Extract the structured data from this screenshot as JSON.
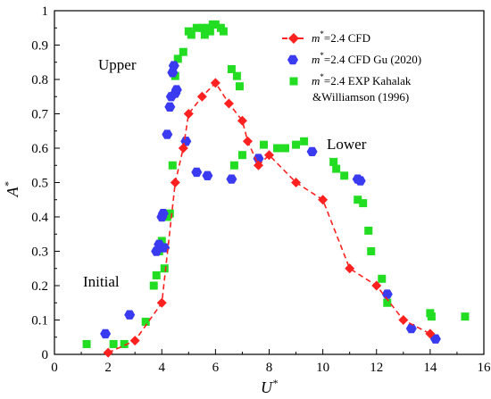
{
  "chart_data": {
    "type": "scatter",
    "xlabel": "U",
    "xlabel_sup": "*",
    "ylabel": "A",
    "ylabel_sup": "*",
    "xlim": [
      0,
      16
    ],
    "ylim": [
      0,
      1
    ],
    "xticks": [
      0,
      2,
      4,
      6,
      8,
      10,
      12,
      14,
      16
    ],
    "yticks": [
      0,
      0.1,
      0.2,
      0.3,
      0.4,
      0.5,
      0.6,
      0.7,
      0.8,
      0.9,
      1
    ],
    "ytick_labels": [
      "0",
      "0.1",
      "0.2",
      "0.3",
      "0.4",
      "0.5",
      "0.6",
      "0.7",
      "0.8",
      "0.9",
      "1"
    ],
    "grid": false,
    "legend_position": "top-right",
    "annotations": [
      {
        "text": "Upper",
        "x": 2.6,
        "y": 0.86
      },
      {
        "text": "Lower",
        "x": 10.6,
        "y": 0.6
      },
      {
        "text": "Initial",
        "x": 1.8,
        "y": 0.2
      }
    ],
    "series": [
      {
        "name_prefix": "m",
        "name_sup": "*",
        "name_rest": "=2.4 CFD",
        "marker": "diamond",
        "line": "dashed",
        "color": "#ff2020",
        "x": [
          2.0,
          3.0,
          4.0,
          4.5,
          4.8,
          5.0,
          5.5,
          6.0,
          6.5,
          7.0,
          7.2,
          7.6,
          8.0,
          9.0,
          10.0,
          11.0,
          12.0,
          13.0,
          14.0
        ],
        "y": [
          0.005,
          0.04,
          0.15,
          0.5,
          0.6,
          0.7,
          0.75,
          0.79,
          0.73,
          0.68,
          0.62,
          0.55,
          0.58,
          0.5,
          0.45,
          0.25,
          0.2,
          0.1,
          0.06
        ]
      },
      {
        "name_prefix": "m",
        "name_sup": "*",
        "name_rest": "=2.4 CFD Gu (2020)",
        "marker": "hexagon",
        "color": "#3a3af0",
        "x": [
          1.9,
          2.8,
          3.8,
          3.9,
          4.0,
          4.05,
          4.1,
          4.2,
          4.3,
          4.35,
          4.4,
          4.45,
          4.5,
          4.55,
          4.9,
          5.3,
          5.7,
          6.6,
          7.6,
          9.6,
          11.3,
          11.4,
          12.4,
          13.3,
          14.2
        ],
        "y": [
          0.06,
          0.115,
          0.3,
          0.32,
          0.4,
          0.41,
          0.31,
          0.64,
          0.72,
          0.75,
          0.82,
          0.84,
          0.76,
          0.77,
          0.62,
          0.53,
          0.52,
          0.51,
          0.57,
          0.59,
          0.51,
          0.505,
          0.175,
          0.075,
          0.045
        ]
      },
      {
        "name_prefix": "m",
        "name_sup": "*",
        "name_rest": "=2.4 EXP Kahalak",
        "name_line2": "&Williamson  (1996)",
        "marker": "square",
        "color": "#22dd22",
        "x": [
          1.2,
          2.2,
          2.6,
          3.4,
          3.7,
          3.8,
          3.9,
          4.0,
          4.1,
          4.2,
          4.3,
          4.4,
          4.5,
          4.6,
          4.8,
          5.0,
          5.1,
          5.3,
          5.5,
          5.6,
          5.7,
          5.8,
          5.9,
          6.0,
          6.2,
          6.3,
          6.6,
          6.7,
          6.8,
          6.9,
          7.0,
          7.8,
          8.3,
          8.6,
          9.0,
          9.3,
          10.4,
          10.5,
          10.8,
          11.3,
          11.5,
          11.7,
          11.8,
          12.2,
          12.4,
          14.0,
          14.05,
          15.3
        ],
        "y": [
          0.03,
          0.03,
          0.03,
          0.095,
          0.2,
          0.23,
          0.3,
          0.33,
          0.25,
          0.4,
          0.41,
          0.55,
          0.81,
          0.86,
          0.88,
          0.94,
          0.93,
          0.95,
          0.95,
          0.93,
          0.95,
          0.94,
          0.96,
          0.96,
          0.95,
          0.94,
          0.83,
          0.55,
          0.81,
          0.78,
          0.58,
          0.61,
          0.6,
          0.6,
          0.61,
          0.62,
          0.56,
          0.54,
          0.52,
          0.45,
          0.44,
          0.36,
          0.3,
          0.22,
          0.15,
          0.12,
          0.11,
          0.11
        ]
      }
    ]
  }
}
